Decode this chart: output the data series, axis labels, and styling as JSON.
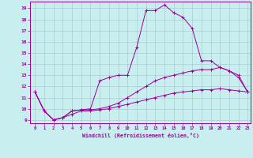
{
  "xlabel": "Windchill (Refroidissement éolien,°C)",
  "ylabel": "",
  "bg_color": "#c8eef0",
  "grid_color": "#aacccc",
  "line_color": "#990099",
  "xlim": [
    -0.5,
    23.3
  ],
  "ylim": [
    8.7,
    19.6
  ],
  "yticks": [
    9,
    10,
    11,
    12,
    13,
    14,
    15,
    16,
    17,
    18,
    19
  ],
  "xticks": [
    0,
    1,
    2,
    3,
    4,
    5,
    6,
    7,
    8,
    9,
    10,
    11,
    12,
    13,
    14,
    15,
    16,
    17,
    18,
    19,
    20,
    21,
    22,
    23
  ],
  "series1_x": [
    0,
    1,
    2,
    3,
    4,
    5,
    6,
    7,
    8,
    9,
    10,
    11,
    12,
    13,
    14,
    15,
    16,
    17,
    18,
    19,
    20,
    21,
    22,
    23
  ],
  "series1_y": [
    11.5,
    9.8,
    9.0,
    9.2,
    9.8,
    9.9,
    10.0,
    12.5,
    12.8,
    13.0,
    13.0,
    15.5,
    18.8,
    18.8,
    19.3,
    18.6,
    18.2,
    17.2,
    14.3,
    14.3,
    13.7,
    13.4,
    12.8,
    11.5
  ],
  "series2_x": [
    0,
    1,
    2,
    3,
    4,
    5,
    6,
    7,
    8,
    9,
    10,
    11,
    12,
    13,
    14,
    15,
    16,
    17,
    18,
    19,
    20,
    21,
    22,
    23
  ],
  "series2_y": [
    11.5,
    9.8,
    9.0,
    9.2,
    9.8,
    9.9,
    9.9,
    10.0,
    10.2,
    10.5,
    11.0,
    11.5,
    12.0,
    12.5,
    12.8,
    13.0,
    13.2,
    13.4,
    13.5,
    13.5,
    13.7,
    13.4,
    13.0,
    11.5
  ],
  "series3_x": [
    0,
    1,
    2,
    3,
    4,
    5,
    6,
    7,
    8,
    9,
    10,
    11,
    12,
    13,
    14,
    15,
    16,
    17,
    18,
    19,
    20,
    21,
    22,
    23
  ],
  "series3_y": [
    11.5,
    9.8,
    9.0,
    9.2,
    9.5,
    9.8,
    9.8,
    9.9,
    10.0,
    10.2,
    10.4,
    10.6,
    10.8,
    11.0,
    11.2,
    11.4,
    11.5,
    11.6,
    11.7,
    11.7,
    11.8,
    11.7,
    11.6,
    11.5
  ]
}
